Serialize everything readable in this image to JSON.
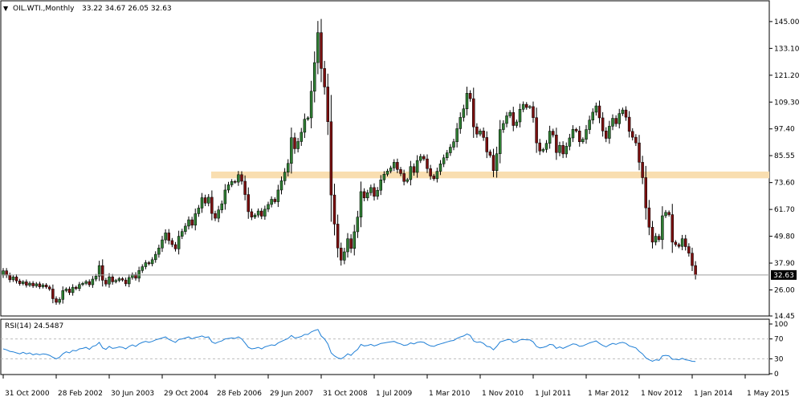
{
  "header": {
    "symbol": "OIL.WTI.,Monthly",
    "ohlc": "33.22 34.67 26.05 32.63"
  },
  "colors": {
    "bull": "#2e7d32",
    "bear": "#7a0f0f",
    "zone": "#f9deb0",
    "rsi_line": "#1f7fd6",
    "grid": "#bdbdbd",
    "price_tag": "#000000"
  },
  "chart_data": [
    {
      "type": "candlestick",
      "title": "OIL.WTI.,Monthly",
      "last_price": "32.63",
      "ylim": [
        14.45,
        151
      ],
      "y_ticks": [
        "145.00",
        "133.10",
        "121.20",
        "109.30",
        "97.40",
        "85.55",
        "73.60",
        "61.70",
        "49.80",
        "37.90",
        "26.00",
        "14.45"
      ],
      "x_ticks": [
        "31 Oct 2000",
        "28 Feb 2002",
        "30 Jun 2003",
        "29 Oct 2004",
        "28 Feb 2006",
        "29 Jun 2007",
        "31 Oct 2008",
        "1 Jul 2009",
        "1 Mar 2010",
        "1 Nov 2010",
        "1 Jul 2011",
        "1 Mar 2012",
        "1 Nov 2012",
        "1 Jan 2014",
        "1 May 2015"
      ],
      "x_tick_indices": [
        0,
        16,
        32,
        48,
        64,
        80,
        96,
        112,
        128,
        144,
        160,
        176,
        192,
        208,
        224
      ],
      "support_zone": [
        75.5,
        78.5
      ],
      "closes": [
        34.5,
        32.5,
        30.5,
        31.8,
        30.0,
        28.8,
        29.6,
        28.1,
        29.0,
        27.8,
        28.7,
        27.4,
        28.2,
        27.3,
        26.4,
        22.1,
        20.5,
        21.8,
        25.7,
        26.4,
        24.8,
        27.2,
        26.6,
        28.4,
        28.9,
        29.7,
        28.3,
        30.8,
        32.1,
        36.8,
        30.3,
        28.6,
        31.8,
        29.6,
        30.2,
        31.0,
        30.4,
        28.7,
        31.5,
        32.8,
        31.2,
        34.6,
        36.3,
        38.1,
        37.6,
        39.4,
        41.8,
        44.6,
        48.2,
        51.3,
        47.9,
        46.1,
        44.2,
        49.8,
        51.9,
        54.3,
        57.1,
        54.7,
        59.8,
        62.3,
        66.9,
        64.5,
        67.1,
        59.9,
        57.8,
        61.5,
        64.2,
        70.3,
        72.6,
        74.1,
        73.8,
        77.1,
        74.2,
        68.3,
        60.7,
        58.3,
        59.2,
        61.0,
        58.7,
        61.8,
        63.9,
        66.2,
        65.1,
        70.3,
        74.4,
        78.2,
        82.1,
        93.5,
        88.6,
        91.8,
        95.9,
        101.7,
        102.3,
        114.1,
        126.8,
        140.1,
        124.2,
        116.0,
        100.6,
        68.1,
        55.2,
        44.6,
        39.2,
        42.9,
        48.7,
        44.4,
        51.8,
        58.3,
        69.6,
        66.8,
        69.1,
        71.4,
        67.5,
        70.2,
        74.8,
        77.3,
        78.7,
        80.1,
        82.6,
        79.4,
        77.6,
        74.1,
        74.9,
        80.7,
        78.1,
        83.4,
        85.2,
        84.1,
        79.8,
        76.5,
        75.3,
        78.6,
        81.9,
        84.6,
        86.8,
        89.3,
        91.7,
        97.5,
        102.5,
        106.3,
        113.2,
        110.8,
        98.3,
        95.1,
        96.5,
        93.6,
        87.2,
        85.7,
        78.9,
        86.4,
        97.1,
        99.8,
        103.2,
        104.7,
        98.9,
        100.5,
        106.1,
        108.3,
        106.9,
        107.3,
        102.4,
        91.2,
        87.6,
        88.3,
        91.0,
        96.4,
        94.7,
        86.9,
        90.1,
        86.3,
        89.7,
        93.4,
        97.2,
        96.5,
        91.7,
        92.8,
        97.1,
        101.3,
        104.8,
        107.6,
        102.3,
        96.5,
        93.2,
        98.6,
        102.1,
        99.7,
        104.2,
        105.8,
        102.6,
        96.3,
        93.7,
        91.2,
        82.6,
        75.8,
        62.4,
        53.8,
        47.2,
        49.8,
        48.3,
        58.9,
        60.4,
        59.4,
        47.2,
        46.1,
        45.3,
        48.7,
        45.2,
        42.3,
        36.8,
        32.6
      ],
      "rsi": {
        "label": "RSI(14) 24.5487",
        "ylim": [
          0,
          100
        ],
        "levels": [
          30,
          70
        ],
        "y_ticks": [
          "100",
          "70",
          "30",
          "0"
        ],
        "start_index": 0,
        "values": [
          50,
          48,
          45,
          44,
          42,
          40,
          43,
          40,
          42,
          38,
          40,
          38,
          40,
          39,
          37,
          33,
          30,
          33,
          40,
          44,
          42,
          47,
          46,
          50,
          51,
          53,
          49,
          55,
          57,
          63,
          52,
          49,
          55,
          51,
          52,
          54,
          53,
          50,
          55,
          58,
          55,
          60,
          63,
          65,
          63,
          65,
          68,
          70,
          72,
          74,
          69,
          66,
          63,
          69,
          70,
          72,
          74,
          70,
          73,
          74,
          76,
          73,
          74,
          64,
          61,
          64,
          66,
          70,
          71,
          72,
          71,
          74,
          70,
          62,
          53,
          50,
          51,
          53,
          50,
          54,
          56,
          58,
          57,
          62,
          65,
          68,
          71,
          77,
          72,
          73,
          75,
          79,
          79,
          84,
          87,
          89,
          76,
          70,
          60,
          42,
          36,
          32,
          30,
          34,
          40,
          37,
          44,
          49,
          59,
          56,
          57,
          59,
          56,
          58,
          61,
          62,
          63,
          64,
          65,
          62,
          60,
          57,
          58,
          62,
          60,
          63,
          64,
          63,
          59,
          56,
          55,
          58,
          60,
          62,
          64,
          66,
          67,
          71,
          74,
          76,
          80,
          77,
          66,
          63,
          64,
          61,
          55,
          54,
          48,
          55,
          64,
          66,
          68,
          69,
          63,
          64,
          68,
          69,
          68,
          68,
          64,
          55,
          52,
          53,
          55,
          59,
          58,
          51,
          54,
          51,
          54,
          57,
          60,
          59,
          55,
          56,
          59,
          62,
          64,
          66,
          61,
          57,
          54,
          58,
          61,
          59,
          62,
          63,
          61,
          56,
          54,
          52,
          45,
          40,
          32,
          28,
          25,
          28,
          27,
          36,
          37,
          36,
          29,
          29,
          28,
          31,
          28,
          27,
          25,
          24.5
        ]
      }
    }
  ]
}
